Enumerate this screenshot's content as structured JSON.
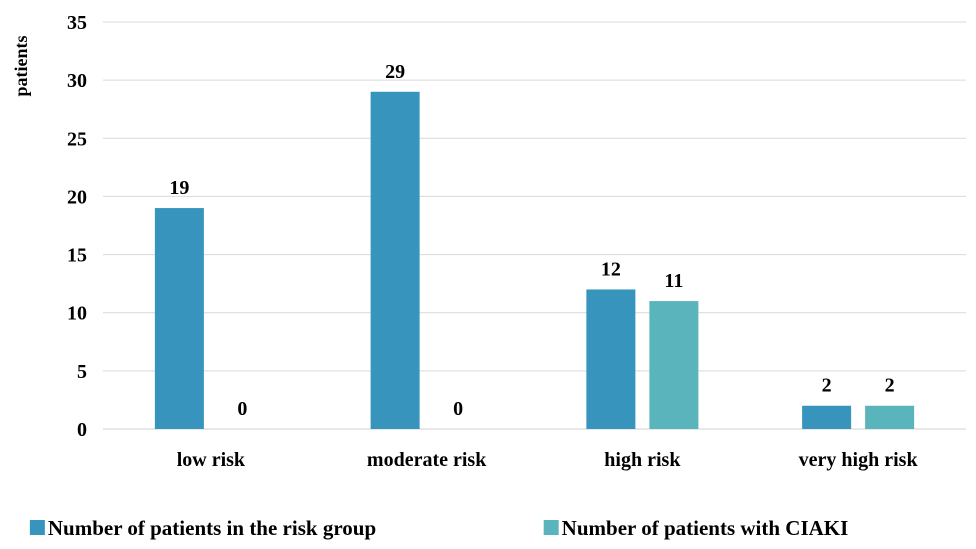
{
  "chart_data": {
    "type": "bar",
    "title": "",
    "xlabel": "",
    "ylabel": "patients",
    "ylim": [
      0,
      35
    ],
    "ytick_step": 5,
    "yticks": [
      "0",
      "5",
      "10",
      "15",
      "20",
      "25",
      "30",
      "35"
    ],
    "grid": true,
    "legend_position": "bottom",
    "categories": [
      "low risk",
      "moderate risk",
      "high risk",
      "very high risk"
    ],
    "series": [
      {
        "name": "Number of patients in the risk group",
        "color": "#3795bd",
        "values": [
          19,
          29,
          12,
          2
        ]
      },
      {
        "name": "Number of patients with CIAKI",
        "color": "#5ab4bc",
        "values": [
          0,
          0,
          11,
          2
        ]
      }
    ]
  }
}
